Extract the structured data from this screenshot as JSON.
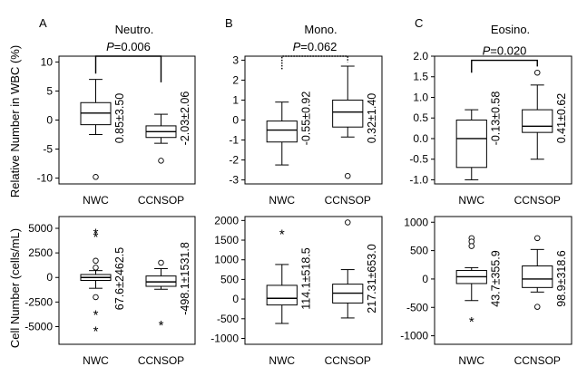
{
  "y_axis_labels": {
    "top": "Relative Number in WBC (%)",
    "bottom": "Cell Number (cells/mL)"
  },
  "chart_data": [
    {
      "type": "box",
      "panel": "A",
      "title": "Neutro.",
      "row": "top",
      "categories": [
        "NWC",
        "CCNSOP"
      ],
      "ylim": [
        -11,
        11
      ],
      "yticks": [
        -10,
        -5,
        0,
        5,
        10
      ],
      "ytick_labels": [
        "-10",
        "-5",
        "0",
        "5",
        "10"
      ],
      "boxes": [
        {
          "category": "NWC",
          "min": -2.5,
          "q1": -0.8,
          "median": 1.2,
          "q3": 3.0,
          "max": 7.0,
          "outliers": [
            {
              "v": -9.8,
              "sym": "o"
            }
          ],
          "stat": "0.85±3.50"
        },
        {
          "category": "CCNSOP",
          "min": -4.0,
          "q1": -3.0,
          "median": -2.0,
          "q3": -1.0,
          "max": 1.0,
          "outliers": [
            {
              "v": -7.0,
              "sym": "o"
            }
          ],
          "stat": "-2.03±2.06"
        }
      ],
      "comparison": {
        "label": "P",
        "value": "=0.006",
        "style": "solid",
        "y": 11.0,
        "drop_left": 8.0,
        "drop_right": 6.5
      }
    },
    {
      "type": "box",
      "panel": "B",
      "title": "Mono.",
      "row": "top",
      "categories": [
        "NWC",
        "CCNSOP"
      ],
      "ylim": [
        -3.2,
        3.2
      ],
      "yticks": [
        -3,
        -2,
        -1,
        0,
        1,
        2,
        3
      ],
      "ytick_labels": [
        "-3",
        "-2",
        "-1",
        "0",
        "1",
        "2",
        "3"
      ],
      "boxes": [
        {
          "category": "NWC",
          "min": -2.25,
          "q1": -1.1,
          "median": -0.5,
          "q3": -0.05,
          "max": 0.9,
          "outliers": [],
          "stat": "-0.55±0.92"
        },
        {
          "category": "CCNSOP",
          "min": -0.85,
          "q1": -0.35,
          "median": 0.4,
          "q3": 1.0,
          "max": 2.7,
          "outliers": [
            {
              "v": -2.8,
              "sym": "o"
            }
          ],
          "stat": "0.32±1.40"
        }
      ],
      "comparison": {
        "label": "P",
        "value": "=0.062",
        "style": "dotted",
        "y": 3.2,
        "drop_left": 2.55,
        "drop_right": 2.9
      }
    },
    {
      "type": "box",
      "panel": "C",
      "title": "Eosino.",
      "row": "top",
      "categories": [
        "NWC",
        "CCNSOP"
      ],
      "ylim": [
        -1.1,
        2.0
      ],
      "yticks": [
        -1.0,
        -0.5,
        0.0,
        0.5,
        1.0,
        1.5,
        2.0
      ],
      "ytick_labels": [
        "-1.0",
        "-0.5",
        "0.0",
        "0.5",
        "1.0",
        "1.5",
        "2.0"
      ],
      "boxes": [
        {
          "category": "NWC",
          "min": -1.0,
          "q1": -0.7,
          "median": 0.0,
          "q3": 0.45,
          "max": 0.7,
          "outliers": [],
          "stat": "-0.13±0.58"
        },
        {
          "category": "CCNSOP",
          "min": -0.5,
          "q1": 0.15,
          "median": 0.3,
          "q3": 0.7,
          "max": 1.3,
          "outliers": [
            {
              "v": 1.6,
              "sym": "o"
            }
          ],
          "stat": "0.41±0.62"
        }
      ],
      "comparison": {
        "label": "P",
        "value": "=0.020",
        "style": "solid",
        "y": 1.9,
        "drop_left": 1.6,
        "drop_right": 1.75
      }
    },
    {
      "type": "box",
      "panel": "A",
      "row": "bottom",
      "categories": [
        "NWC",
        "CCNSOP"
      ],
      "ylim": [
        -6800,
        6200
      ],
      "yticks": [
        -5000,
        -2500,
        0,
        2500,
        5000
      ],
      "ytick_labels": [
        "-5000",
        "-2500",
        "0",
        "2500",
        "5000"
      ],
      "boxes": [
        {
          "category": "NWC",
          "min": -1100,
          "q1": -300,
          "median": 0,
          "q3": 300,
          "max": 700,
          "outliers": [
            {
              "v": 4700,
              "sym": "*"
            },
            {
              "v": 4300,
              "sym": "*"
            },
            {
              "v": 1700,
              "sym": "o"
            },
            {
              "v": 1000,
              "sym": "o"
            },
            {
              "v": -2000,
              "sym": "o"
            },
            {
              "v": -3600,
              "sym": "*"
            },
            {
              "v": -5300,
              "sym": "*"
            }
          ],
          "stat": "67.6±2462.5"
        },
        {
          "category": "CCNSOP",
          "min": -1200,
          "q1": -900,
          "median": -450,
          "q3": 150,
          "max": 900,
          "outliers": [
            {
              "v": 1500,
              "sym": "o"
            },
            {
              "v": -4700,
              "sym": "*"
            }
          ],
          "stat": "-498.1±1531.8"
        }
      ]
    },
    {
      "type": "box",
      "panel": "B",
      "row": "bottom",
      "categories": [
        "NWC",
        "CCNSOP"
      ],
      "ylim": [
        -1150,
        2100
      ],
      "yticks": [
        -1000,
        -500,
        0,
        500,
        1000,
        1500,
        2000
      ],
      "ytick_labels": [
        "-1000",
        "-500",
        "0",
        "500",
        "1000",
        "1500",
        "2000"
      ],
      "boxes": [
        {
          "category": "NWC",
          "min": -620,
          "q1": -150,
          "median": 20,
          "q3": 350,
          "max": 880,
          "outliers": [
            {
              "v": 1700,
              "sym": "*"
            }
          ],
          "stat": "114.1±518.5"
        },
        {
          "category": "CCNSOP",
          "min": -480,
          "q1": -100,
          "median": 150,
          "q3": 380,
          "max": 750,
          "outliers": [
            {
              "v": 1950,
              "sym": "o"
            }
          ],
          "stat": "217.31±653.0"
        }
      ]
    },
    {
      "type": "box",
      "panel": "C",
      "row": "bottom",
      "categories": [
        "NWC",
        "CCNSOP"
      ],
      "ylim": [
        -1150,
        1100
      ],
      "yticks": [
        -1000,
        -500,
        0,
        500,
        1000
      ],
      "ytick_labels": [
        "-1000",
        "-500",
        "0",
        "500",
        "1000"
      ],
      "boxes": [
        {
          "category": "NWC",
          "min": -380,
          "q1": -80,
          "median": 40,
          "q3": 150,
          "max": 200,
          "outliers": [
            {
              "v": 720,
              "sym": "o"
            },
            {
              "v": 660,
              "sym": "o"
            },
            {
              "v": 580,
              "sym": "o"
            },
            {
              "v": -720,
              "sym": "*"
            }
          ],
          "stat": "43.7±355.9"
        },
        {
          "category": "CCNSOP",
          "min": -230,
          "q1": -150,
          "median": 0,
          "q3": 230,
          "max": 520,
          "outliers": [
            {
              "v": 720,
              "sym": "o"
            },
            {
              "v": -490,
              "sym": "o"
            }
          ],
          "stat": "98.9±318.6"
        }
      ]
    }
  ]
}
